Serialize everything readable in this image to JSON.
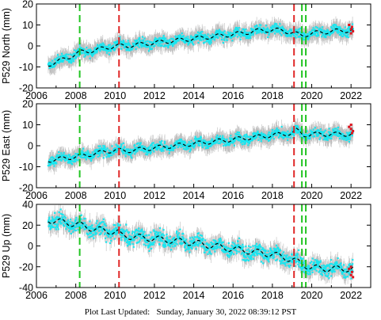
{
  "footer": {
    "prefix": "Plot Last Updated:",
    "timestamp": "Sunday, January 30, 2022 08:39:12 PST"
  },
  "chart_data": [
    {
      "type": "scatter",
      "ylabel": "P529 North (mm)",
      "xlim": [
        2006,
        2023
      ],
      "ylim": [
        -20,
        20
      ],
      "xticks": [
        2006,
        2008,
        2010,
        2012,
        2014,
        2016,
        2018,
        2020,
        2022
      ],
      "yticks": [
        -20,
        -10,
        0,
        10,
        20
      ],
      "show_xtick_labels": true,
      "x_start": 2006.6,
      "x_end": 2022.1,
      "trend_x": [
        2006.6,
        2007.5,
        2008.2,
        2009.0,
        2010.0,
        2010.6,
        2012.0,
        2014.0,
        2016.0,
        2017.5,
        2018.5,
        2019.1,
        2019.5,
        2020.0,
        2021.0,
        2022.0
      ],
      "trend_y": [
        -9,
        -6,
        -3,
        -2,
        0,
        0,
        1.5,
        3.5,
        5.5,
        7.5,
        7.5,
        6,
        5,
        6,
        7,
        7.5
      ],
      "seasonal_amplitude": 1.0,
      "scatter_sd": 1.6,
      "recent_points": [
        [
          2021.9,
          10
        ],
        [
          2022.0,
          8
        ],
        [
          2022.05,
          9
        ],
        [
          2022.1,
          7
        ],
        [
          2022.0,
          6
        ]
      ],
      "green_lines": [
        2008.2,
        2019.5,
        2019.7
      ],
      "red_lines": [
        2010.2,
        2019.1
      ]
    },
    {
      "type": "scatter",
      "ylabel": "P529 East (mm)",
      "xlim": [
        2006,
        2023
      ],
      "ylim": [
        -20,
        20
      ],
      "xticks": [
        2006,
        2008,
        2010,
        2012,
        2014,
        2016,
        2018,
        2020,
        2022
      ],
      "yticks": [
        -20,
        -10,
        0,
        10,
        20
      ],
      "show_xtick_labels": true,
      "x_start": 2006.6,
      "x_end": 2022.1,
      "trend_x": [
        2006.6,
        2008.2,
        2010.0,
        2010.5,
        2012.0,
        2014.0,
        2016.0,
        2018.0,
        2019.0,
        2019.2,
        2019.6,
        2020.0,
        2021.0,
        2022.0
      ],
      "trend_y": [
        -7,
        -5,
        -2,
        -2.5,
        -1,
        1,
        3,
        5,
        6,
        7.5,
        5,
        5.5,
        5.5,
        5.5
      ],
      "seasonal_amplitude": 1.0,
      "scatter_sd": 1.6,
      "recent_points": [
        [
          2021.9,
          9
        ],
        [
          2022.0,
          8
        ],
        [
          2022.05,
          6
        ],
        [
          2022.1,
          7
        ],
        [
          2022.0,
          10
        ]
      ],
      "green_lines": [
        2008.2,
        2019.5,
        2019.7
      ],
      "red_lines": [
        2010.2,
        2019.1
      ]
    },
    {
      "type": "scatter",
      "ylabel": "P529 Up (mm)",
      "xlim": [
        2006,
        2023
      ],
      "ylim": [
        -40,
        40
      ],
      "xticks": [
        2006,
        2008,
        2010,
        2012,
        2014,
        2016,
        2018,
        2020,
        2022
      ],
      "yticks": [
        -40,
        -20,
        0,
        20,
        40
      ],
      "show_xtick_labels": true,
      "x_start": 2006.6,
      "x_end": 2022.1,
      "trend_x": [
        2006.6,
        2008.0,
        2009.0,
        2010.2,
        2010.3,
        2012.0,
        2014.0,
        2016.0,
        2018.0,
        2019.0,
        2019.6,
        2020.0,
        2021.0,
        2022.0
      ],
      "trend_y": [
        25,
        21,
        16,
        13,
        10,
        7,
        3,
        -3,
        -8,
        -13,
        -18,
        -21,
        -22,
        -22
      ],
      "seasonal_amplitude": 3.0,
      "scatter_sd": 5.0,
      "recent_points": [
        [
          2021.9,
          -22
        ],
        [
          2022.0,
          -28
        ],
        [
          2022.05,
          -25
        ],
        [
          2022.1,
          -30
        ],
        [
          2022.0,
          -20
        ]
      ],
      "green_lines": [
        2008.2,
        2019.5,
        2019.7
      ],
      "red_lines": [
        2010.2,
        2019.1
      ]
    }
  ],
  "colors": {
    "scatter": "#19e6f0",
    "error_bar": "#a7a7a7",
    "trend": "#000000",
    "recent": "#e0141e",
    "green_line": "#22c422",
    "red_line": "#e02828"
  }
}
